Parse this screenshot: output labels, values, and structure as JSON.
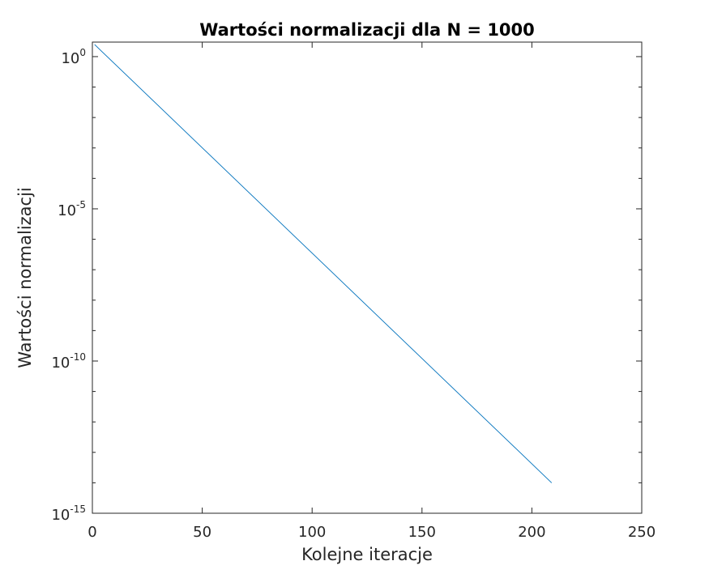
{
  "chart_data": {
    "type": "line",
    "title": "Wartości normalizacji dla N = 1000",
    "xlabel": "Kolejne iteracje",
    "ylabel": "Wartości normalizacji",
    "xlim": [
      0,
      250
    ],
    "ylim": [
      1e-15,
      3
    ],
    "yscale": "log",
    "grid": false,
    "x_ticks": [
      0,
      50,
      100,
      150,
      200,
      250
    ],
    "y_ticks": [
      {
        "base": "10",
        "exp": "-15",
        "value": 1e-15
      },
      {
        "base": "10",
        "exp": "-10",
        "value": 1e-10
      },
      {
        "base": "10",
        "exp": "-5",
        "value": 1e-05
      },
      {
        "base": "10",
        "exp": "0",
        "value": 1
      }
    ],
    "series": [
      {
        "color": "#0072bd",
        "x": [
          1,
          209
        ],
        "y": [
          2.5,
          1e-14
        ]
      }
    ]
  }
}
